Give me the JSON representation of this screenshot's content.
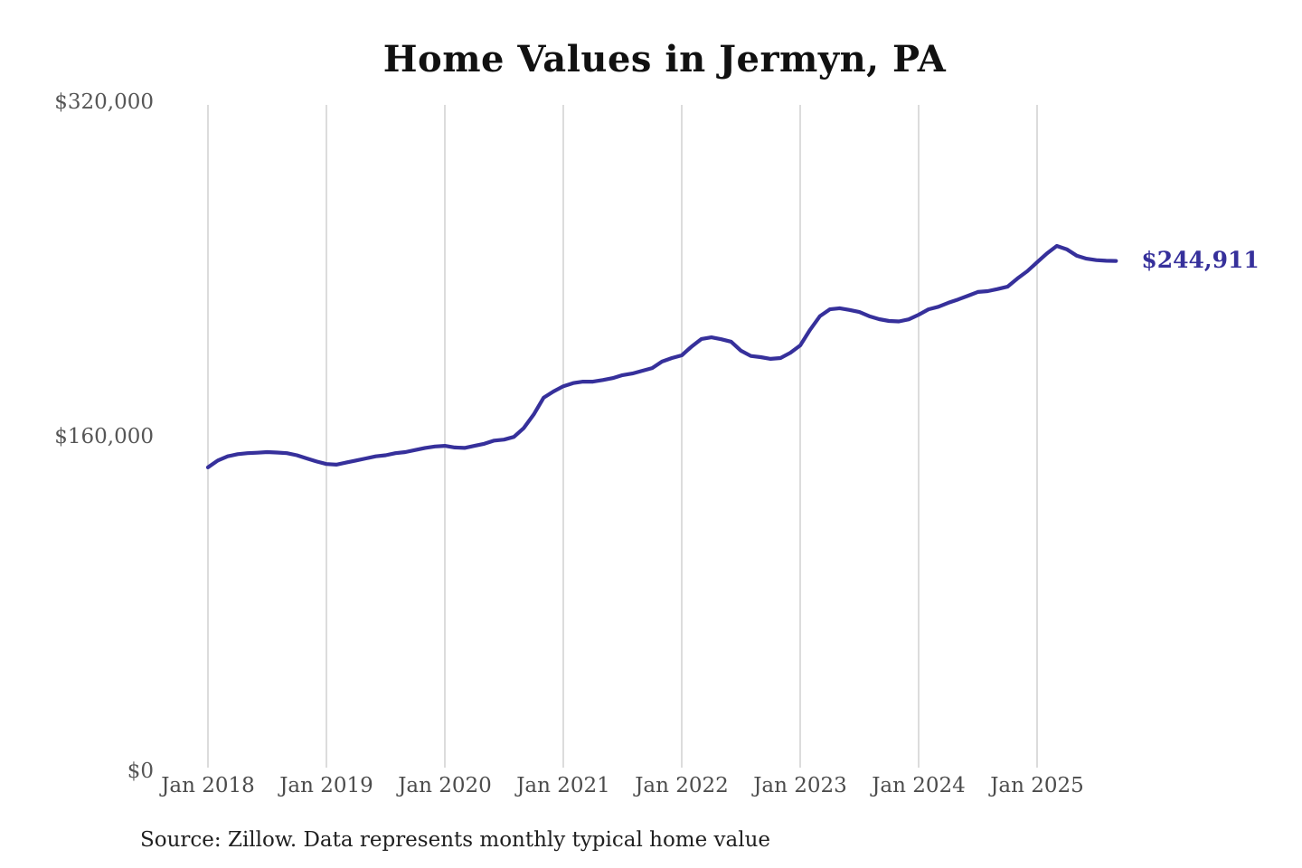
{
  "title": "Home Values in Jermyn, PA",
  "source_note": "Source: Zillow. Data represents monthly typical home value",
  "latest_value_label": "$244,911",
  "colors": {
    "background": "#ffffff",
    "line": "#36309b",
    "grid": "#c9c9c9",
    "title_text": "#111111",
    "y_axis_text": "#565656",
    "x_axis_text": "#4c4c4c",
    "latest_value_text": "#36309b",
    "source_text": "#1f1f1f"
  },
  "chart_data": {
    "type": "line",
    "title": "Home Values in Jermyn, PA",
    "xlabel": "",
    "ylabel": "",
    "ylim": [
      0,
      320000
    ],
    "grid": "vertical-only",
    "legend": "none",
    "frequency": "monthly",
    "start_month": "Jan 2018",
    "end_month": "Sep 2025",
    "x_tick_labels": [
      "Jan 2018",
      "Jan 2019",
      "Jan 2020",
      "Jan 2021",
      "Jan 2022",
      "Jan 2023",
      "Jan 2024",
      "Jan 2025"
    ],
    "y_ticks": [
      {
        "label": "$0",
        "value": 0
      },
      {
        "label": "$160,000",
        "value": 160000
      },
      {
        "label": "$320,000",
        "value": 320000
      }
    ],
    "latest_value": 244911,
    "series": [
      {
        "name": "Typical home value",
        "values": [
          146200,
          149500,
          151500,
          152500,
          153000,
          153200,
          153500,
          153300,
          153000,
          152000,
          150500,
          149000,
          147800,
          147500,
          148500,
          149500,
          150500,
          151500,
          152000,
          153000,
          153500,
          154500,
          155500,
          156200,
          156500,
          155700,
          155500,
          156500,
          157500,
          159000,
          159500,
          160800,
          165000,
          171500,
          179500,
          182500,
          185000,
          186500,
          187200,
          187200,
          188000,
          188900,
          190300,
          191100,
          192400,
          193700,
          196800,
          198500,
          199800,
          204000,
          207600,
          208400,
          207500,
          206300,
          202000,
          199500,
          198900,
          198100,
          198500,
          201000,
          204500,
          212000,
          218500,
          221800,
          222300,
          221500,
          220500,
          218500,
          217100,
          216200,
          216000,
          217000,
          219200,
          221800,
          223000,
          224900,
          226500,
          228300,
          230100,
          230500,
          231500,
          232600,
          236500,
          240000,
          244300,
          248500,
          252100,
          250500,
          247500,
          246000,
          245300,
          245000,
          244911
        ]
      }
    ]
  }
}
